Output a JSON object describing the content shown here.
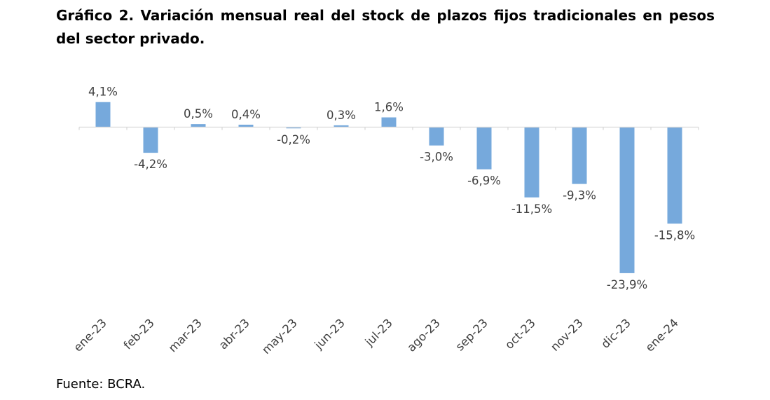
{
  "title": "Gráfico 2. Variación mensual real del stock de plazos fijos tradicionales en pesos del sector privado.",
  "source": "Fuente: BCRA.",
  "chart_data": {
    "type": "bar",
    "categories": [
      "ene-23",
      "feb-23",
      "mar-23",
      "abr-23",
      "may-23",
      "jun-23",
      "jul-23",
      "ago-23",
      "sep-23",
      "oct-23",
      "nov-23",
      "dic-23",
      "ene-24"
    ],
    "values": [
      4.1,
      -4.2,
      0.5,
      0.4,
      -0.2,
      0.3,
      1.6,
      -3.0,
      -6.9,
      -11.5,
      -9.3,
      -23.9,
      -15.8
    ],
    "labels": [
      "4,1%",
      "-4,2%",
      "0,5%",
      "0,4%",
      "-0,2%",
      "0,3%",
      "1,6%",
      "-3,0%",
      "-6,9%",
      "-11,5%",
      "-9,3%",
      "-23,9%",
      "-15,8%"
    ],
    "title": "Gráfico 2. Variación mensual real del stock de plazos fijos tradicionales en pesos del sector privado.",
    "xlabel": "",
    "ylabel": "",
    "ylim": [
      -23.9,
      4.1
    ],
    "grid": false,
    "color": "#76A9DC"
  }
}
